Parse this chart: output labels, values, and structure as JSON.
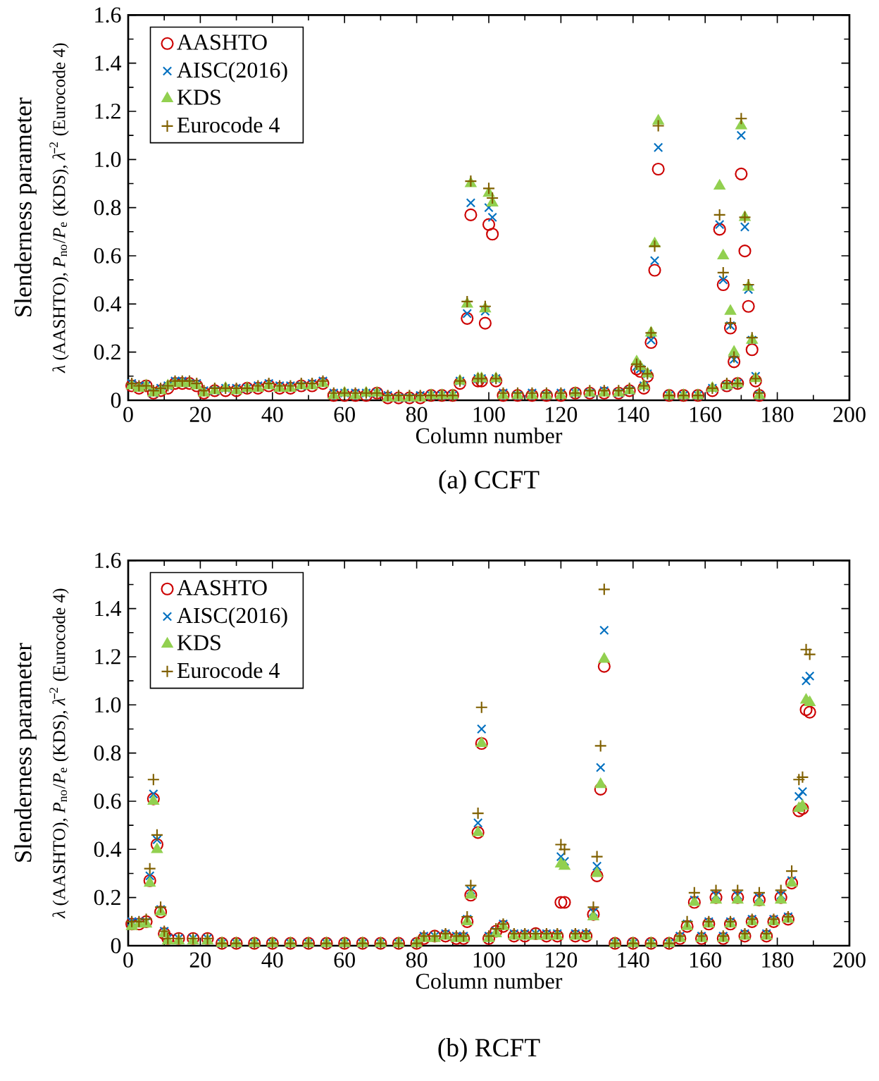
{
  "chart_data": [
    {
      "type": "scatter",
      "title": "(a) CCFT",
      "xlabel": "Column number",
      "ylabel": "Slenderness parameter",
      "annotations": [
        "*λ* (AASHTO), *P*$_{no}$/*P*$_{e}$ (KDS), *λ̄*$^{2}$ (Eurocode 4)"
      ],
      "x": [
        1,
        3,
        5,
        7,
        9,
        11,
        13,
        15,
        17,
        19,
        21,
        24,
        27,
        30,
        33,
        36,
        39,
        42,
        45,
        48,
        51,
        54,
        57,
        60,
        63,
        66,
        69,
        72,
        75,
        78,
        81,
        84,
        87,
        90,
        92,
        94,
        95,
        97,
        98,
        99,
        100,
        101,
        102,
        104,
        108,
        112,
        116,
        120,
        124,
        128,
        132,
        136,
        139,
        141,
        142,
        143,
        144,
        145,
        146,
        147,
        150,
        154,
        158,
        162,
        164,
        165,
        166,
        167,
        168,
        169,
        170,
        171,
        172,
        173,
        174,
        175
      ],
      "series": [
        {
          "name": "AASHTO",
          "color": "#cc0000",
          "marker": "circle",
          "values": [
            0.06,
            0.05,
            0.06,
            0.03,
            0.04,
            0.05,
            0.07,
            0.07,
            0.07,
            0.06,
            0.03,
            0.04,
            0.04,
            0.04,
            0.05,
            0.05,
            0.06,
            0.05,
            0.05,
            0.06,
            0.06,
            0.07,
            0.02,
            0.02,
            0.02,
            0.02,
            0.03,
            0.01,
            0.01,
            0.01,
            0.01,
            0.02,
            0.02,
            0.02,
            0.07,
            0.34,
            0.77,
            0.08,
            0.08,
            0.32,
            0.73,
            0.69,
            0.08,
            0.02,
            0.02,
            0.02,
            0.02,
            0.02,
            0.03,
            0.03,
            0.03,
            0.03,
            0.04,
            0.13,
            0.12,
            0.05,
            0.1,
            0.24,
            0.54,
            0.96,
            0.02,
            0.02,
            0.02,
            0.04,
            0.71,
            0.48,
            0.06,
            0.3,
            0.16,
            0.07,
            0.94,
            0.62,
            0.39,
            0.21,
            0.08,
            0.02
          ]
        },
        {
          "name": "AISC(2016)",
          "color": "#0070c0",
          "marker": "cross",
          "values": [
            0.07,
            0.06,
            0.06,
            0.03,
            0.05,
            0.06,
            0.08,
            0.08,
            0.07,
            0.07,
            0.04,
            0.04,
            0.05,
            0.05,
            0.05,
            0.06,
            0.07,
            0.06,
            0.06,
            0.06,
            0.07,
            0.08,
            0.03,
            0.03,
            0.03,
            0.03,
            0.03,
            0.02,
            0.01,
            0.01,
            0.02,
            0.02,
            0.02,
            0.02,
            0.08,
            0.36,
            0.82,
            0.09,
            0.09,
            0.37,
            0.8,
            0.76,
            0.09,
            0.03,
            0.02,
            0.03,
            0.02,
            0.03,
            0.03,
            0.03,
            0.04,
            0.03,
            0.04,
            0.14,
            0.13,
            0.06,
            0.11,
            0.25,
            0.58,
            1.05,
            0.02,
            0.02,
            0.02,
            0.05,
            0.73,
            0.5,
            0.06,
            0.31,
            0.17,
            0.07,
            1.1,
            0.72,
            0.46,
            0.25,
            0.1,
            0.02
          ]
        },
        {
          "name": "KDS",
          "color": "#92d050",
          "marker": "triangle",
          "values": [
            0.06,
            0.05,
            0.06,
            0.03,
            0.04,
            0.06,
            0.07,
            0.07,
            0.07,
            0.06,
            0.03,
            0.04,
            0.05,
            0.04,
            0.05,
            0.05,
            0.06,
            0.05,
            0.05,
            0.06,
            0.06,
            0.07,
            0.02,
            0.03,
            0.02,
            0.03,
            0.03,
            0.01,
            0.01,
            0.01,
            0.01,
            0.02,
            0.02,
            0.02,
            0.08,
            0.4,
            0.9,
            0.09,
            0.09,
            0.38,
            0.86,
            0.82,
            0.09,
            0.02,
            0.02,
            0.02,
            0.02,
            0.02,
            0.03,
            0.03,
            0.03,
            0.03,
            0.04,
            0.16,
            0.14,
            0.06,
            0.11,
            0.28,
            0.65,
            1.16,
            0.02,
            0.02,
            0.02,
            0.05,
            0.89,
            0.6,
            0.06,
            0.37,
            0.2,
            0.07,
            1.14,
            0.76,
            0.47,
            0.25,
            0.09,
            0.02
          ]
        },
        {
          "name": "Eurocode 4",
          "color": "#806000",
          "marker": "plus",
          "values": [
            0.07,
            0.06,
            0.06,
            0.04,
            0.05,
            0.06,
            0.08,
            0.08,
            0.08,
            0.07,
            0.04,
            0.05,
            0.05,
            0.05,
            0.05,
            0.06,
            0.07,
            0.06,
            0.06,
            0.07,
            0.07,
            0.08,
            0.03,
            0.03,
            0.03,
            0.03,
            0.03,
            0.02,
            0.02,
            0.02,
            0.02,
            0.02,
            0.02,
            0.02,
            0.08,
            0.41,
            0.91,
            0.09,
            0.09,
            0.39,
            0.88,
            0.84,
            0.09,
            0.03,
            0.03,
            0.03,
            0.03,
            0.03,
            0.03,
            0.04,
            0.04,
            0.04,
            0.05,
            0.15,
            0.14,
            0.06,
            0.11,
            0.28,
            0.64,
            1.14,
            0.02,
            0.02,
            0.02,
            0.05,
            0.77,
            0.53,
            0.07,
            0.32,
            0.18,
            0.07,
            1.17,
            0.76,
            0.48,
            0.26,
            0.09,
            0.03
          ]
        }
      ],
      "xlim": [
        0,
        200
      ],
      "ylim": [
        0,
        1.6
      ],
      "xticks": [
        0,
        20,
        40,
        60,
        80,
        100,
        120,
        140,
        160,
        180,
        200
      ],
      "yticks": [
        0,
        0.2,
        0.4,
        0.6,
        0.8,
        {
          "value": 1,
          "label": "1.0"
        },
        1.2,
        1.4,
        1.6
      ],
      "legend": "top left"
    },
    {
      "type": "scatter",
      "title": "(b) RCFT",
      "xlabel": "Column number",
      "ylabel": "Slenderness parameter",
      "annotations": [
        "*λ* (AASHTO), *P*$_{no}$/*P*$_{e}$ (KDS), *λ̄*$^{2}$ (Eurocode 4)"
      ],
      "x": [
        1,
        3,
        5,
        6,
        7,
        8,
        9,
        10,
        11,
        14,
        18,
        22,
        26,
        30,
        35,
        40,
        45,
        50,
        55,
        60,
        65,
        70,
        75,
        80,
        82,
        85,
        88,
        91,
        93,
        94,
        95,
        97,
        98,
        100,
        102,
        104,
        107,
        110,
        113,
        116,
        119,
        120,
        121,
        124,
        127,
        129,
        130,
        131,
        132,
        135,
        140,
        145,
        150,
        153,
        155,
        157,
        159,
        161,
        163,
        165,
        167,
        169,
        171,
        173,
        175,
        177,
        179,
        181,
        183,
        184,
        186,
        187,
        188,
        189
      ],
      "series": [
        {
          "name": "AASHTO",
          "color": "#cc0000",
          "marker": "circle",
          "values": [
            0.09,
            0.09,
            0.1,
            0.27,
            0.61,
            0.42,
            0.14,
            0.05,
            0.03,
            0.03,
            0.03,
            0.03,
            0.01,
            0.01,
            0.01,
            0.01,
            0.01,
            0.01,
            0.01,
            0.01,
            0.01,
            0.01,
            0.01,
            0.01,
            0.03,
            0.04,
            0.04,
            0.03,
            0.03,
            0.1,
            0.21,
            0.47,
            0.84,
            0.03,
            0.06,
            0.08,
            0.04,
            0.04,
            0.05,
            0.04,
            0.04,
            0.18,
            0.18,
            0.04,
            0.04,
            0.13,
            0.29,
            0.65,
            1.16,
            0.01,
            0.01,
            0.01,
            0.01,
            0.03,
            0.08,
            0.18,
            0.03,
            0.09,
            0.2,
            0.03,
            0.09,
            0.2,
            0.04,
            0.1,
            0.19,
            0.04,
            0.1,
            0.2,
            0.11,
            0.26,
            0.56,
            0.57,
            0.98,
            0.97
          ]
        },
        {
          "name": "AISC(2016)",
          "color": "#0070c0",
          "marker": "cross",
          "values": [
            0.1,
            0.1,
            0.1,
            0.29,
            0.63,
            0.44,
            0.15,
            0.06,
            0.03,
            0.03,
            0.03,
            0.03,
            0.01,
            0.01,
            0.01,
            0.01,
            0.01,
            0.01,
            0.01,
            0.01,
            0.01,
            0.01,
            0.01,
            0.01,
            0.04,
            0.04,
            0.05,
            0.04,
            0.04,
            0.11,
            0.23,
            0.51,
            0.9,
            0.04,
            0.06,
            0.09,
            0.05,
            0.05,
            0.05,
            0.05,
            0.05,
            0.37,
            0.35,
            0.05,
            0.05,
            0.14,
            0.33,
            0.74,
            1.31,
            0.01,
            0.01,
            0.01,
            0.01,
            0.04,
            0.09,
            0.19,
            0.04,
            0.1,
            0.21,
            0.04,
            0.1,
            0.21,
            0.05,
            0.11,
            0.2,
            0.05,
            0.11,
            0.21,
            0.12,
            0.27,
            0.62,
            0.64,
            1.1,
            1.12
          ]
        },
        {
          "name": "KDS",
          "color": "#92d050",
          "marker": "triangle",
          "values": [
            0.08,
            0.09,
            0.09,
            0.26,
            0.6,
            0.4,
            0.14,
            0.05,
            0.02,
            0.02,
            0.02,
            0.02,
            0.01,
            0.01,
            0.01,
            0.01,
            0.01,
            0.01,
            0.01,
            0.01,
            0.01,
            0.01,
            0.01,
            0.01,
            0.03,
            0.03,
            0.04,
            0.03,
            0.03,
            0.1,
            0.21,
            0.47,
            0.84,
            0.03,
            0.05,
            0.08,
            0.04,
            0.04,
            0.04,
            0.04,
            0.04,
            0.34,
            0.33,
            0.04,
            0.04,
            0.12,
            0.3,
            0.67,
            1.19,
            0.01,
            0.01,
            0.01,
            0.01,
            0.03,
            0.08,
            0.18,
            0.03,
            0.09,
            0.19,
            0.03,
            0.09,
            0.19,
            0.04,
            0.1,
            0.18,
            0.04,
            0.1,
            0.19,
            0.11,
            0.26,
            0.57,
            0.58,
            1.02,
            1.01
          ]
        },
        {
          "name": "Eurocode 4",
          "color": "#806000",
          "marker": "plus",
          "values": [
            0.1,
            0.1,
            0.11,
            0.32,
            0.69,
            0.46,
            0.16,
            0.06,
            0.03,
            0.03,
            0.03,
            0.03,
            0.01,
            0.01,
            0.01,
            0.01,
            0.01,
            0.01,
            0.01,
            0.01,
            0.01,
            0.01,
            0.01,
            0.01,
            0.04,
            0.04,
            0.05,
            0.04,
            0.04,
            0.12,
            0.25,
            0.55,
            0.99,
            0.04,
            0.07,
            0.09,
            0.05,
            0.05,
            0.05,
            0.05,
            0.05,
            0.42,
            0.4,
            0.05,
            0.05,
            0.16,
            0.37,
            0.83,
            1.48,
            0.01,
            0.01,
            0.01,
            0.01,
            0.04,
            0.1,
            0.22,
            0.04,
            0.1,
            0.23,
            0.04,
            0.1,
            0.23,
            0.05,
            0.11,
            0.22,
            0.05,
            0.11,
            0.23,
            0.12,
            0.31,
            0.69,
            0.7,
            1.23,
            1.21
          ]
        }
      ],
      "xlim": [
        0,
        200
      ],
      "ylim": [
        0,
        1.6
      ],
      "xticks": [
        0,
        20,
        40,
        60,
        80,
        100,
        120,
        140,
        160,
        180,
        200
      ],
      "yticks": [
        0,
        0.2,
        0.4,
        0.6,
        0.8,
        {
          "value": 1,
          "label": "1.0"
        },
        1.2,
        1.4,
        1.6
      ],
      "legend": "top left"
    }
  ]
}
